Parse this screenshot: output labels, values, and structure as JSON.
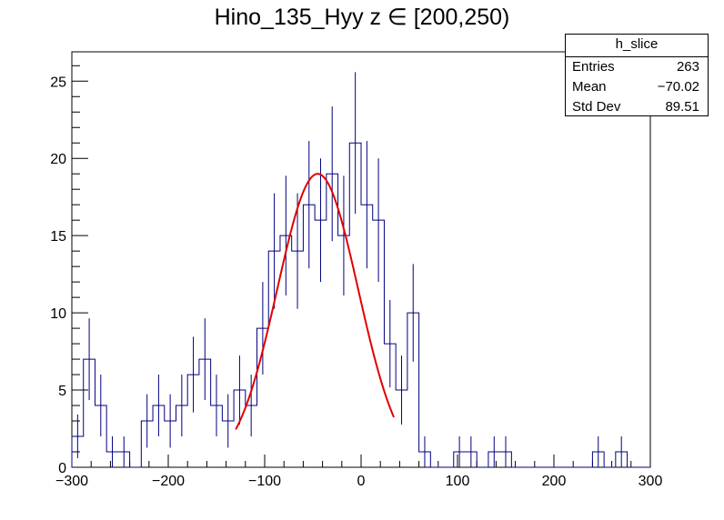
{
  "title": "Hino_135_Hyy z  ∈ [200,250)",
  "stats": {
    "name": "h_slice",
    "rows": [
      {
        "label": "Entries",
        "value": "263"
      },
      {
        "label": "Mean",
        "value": "−70.02"
      },
      {
        "label": "Std Dev",
        "value": "89.51"
      }
    ]
  },
  "colors": {
    "histogram": "#000080",
    "fit": "#e00000",
    "axes": "#000000"
  },
  "chart_data": {
    "type": "histogram",
    "title": "Hino_135_Hyy z  ∈ [200,250)",
    "xlabel": "",
    "ylabel": "",
    "xlim": [
      -300,
      300
    ],
    "ylim": [
      0,
      26.9
    ],
    "x_ticks": [
      -300,
      -200,
      -100,
      0,
      100,
      200,
      300
    ],
    "x_tick_labels": [
      "−300",
      "−200",
      "−100",
      "0",
      "100",
      "200",
      "300"
    ],
    "y_ticks": [
      0,
      5,
      10,
      15,
      20,
      25
    ],
    "y_tick_labels": [
      "0",
      "5",
      "10",
      "15",
      "20",
      "25"
    ],
    "bin_width": 12,
    "bin_low_edges": [
      -300,
      -288,
      -276,
      -264,
      -252,
      -240,
      -228,
      -216,
      -204,
      -192,
      -180,
      -168,
      -156,
      -144,
      -132,
      -120,
      -108,
      -96,
      -84,
      -72,
      -60,
      -48,
      -36,
      -24,
      -12,
      0,
      12,
      24,
      36,
      48,
      60,
      72,
      84,
      96,
      108,
      120,
      132,
      144,
      156,
      168,
      180,
      192,
      204,
      216,
      228,
      240,
      252,
      264,
      276,
      288
    ],
    "bin_contents": [
      2,
      7,
      4,
      1,
      1,
      0,
      3,
      4,
      3,
      4,
      6,
      7,
      4,
      3,
      5,
      4,
      9,
      14,
      15,
      14,
      17,
      16,
      19,
      15,
      21,
      17,
      16,
      8,
      5,
      10,
      1,
      0,
      0,
      1,
      1,
      0,
      1,
      1,
      0,
      0,
      0,
      0,
      0,
      0,
      0,
      1,
      0,
      1,
      0,
      0
    ],
    "fit": {
      "type": "gaussian",
      "x_range": [
        -130,
        34
      ],
      "constant": 19.0,
      "mean": -45,
      "sigma": 42
    }
  }
}
